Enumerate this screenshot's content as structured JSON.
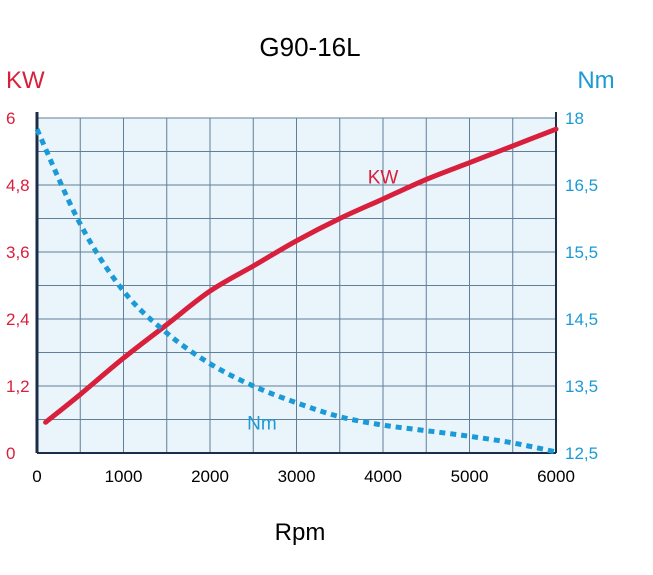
{
  "chart_data": {
    "type": "line",
    "title": "G90-16L",
    "xlabel": "Rpm",
    "y_left_unit": "KW",
    "y_right_unit": "Nm",
    "x_ticks": [
      "0",
      "1000",
      "2000",
      "3000",
      "4000",
      "5000",
      "6000"
    ],
    "x_tick_values": [
      0,
      1000,
      2000,
      3000,
      4000,
      5000,
      6000
    ],
    "y_left_ticks": [
      "0",
      "1,2",
      "2,4",
      "3,6",
      "4,8",
      "6"
    ],
    "y_left_tick_values": [
      0,
      1.2,
      2.4,
      3.6,
      4.8,
      6
    ],
    "y_right_ticks": [
      "12,5",
      "13,5",
      "14,5",
      "15,5",
      "16,5",
      "18"
    ],
    "xlim": [
      0,
      6000
    ],
    "ylim_left": [
      0,
      6
    ],
    "grid": true,
    "series": [
      {
        "name": "KW",
        "axis": "left",
        "color": "#d81f3b",
        "style": "solid",
        "x": [
          100,
          500,
          1000,
          1500,
          2000,
          2500,
          3000,
          3500,
          4000,
          4500,
          5000,
          5500,
          6000
        ],
        "values": [
          0.55,
          1.05,
          1.7,
          2.3,
          2.9,
          3.35,
          3.8,
          4.2,
          4.55,
          4.9,
          5.2,
          5.5,
          5.8
        ]
      },
      {
        "name": "Nm",
        "axis": "right",
        "color": "#1a9ad6",
        "style": "dotted",
        "x": [
          0,
          500,
          1000,
          1500,
          2000,
          2500,
          3000,
          3500,
          4000,
          4500,
          5000,
          5500,
          6000
        ],
        "values_left_scale": [
          5.8,
          4.1,
          2.9,
          2.15,
          1.6,
          1.2,
          0.9,
          0.65,
          0.5,
          0.4,
          0.3,
          0.18,
          0.02
        ]
      }
    ],
    "series_labels": [
      {
        "text": "KW",
        "color": "#d81f3b",
        "x": 4000,
        "y": 4.95
      },
      {
        "text": "Nm",
        "color": "#1a9ad6",
        "x": 2600,
        "y": 0.55
      }
    ],
    "colors": {
      "left_axis": "#d81f3b",
      "right_axis": "#1a9ad6",
      "plot_background": "#eaf4fb",
      "grid": "#5f7f9a"
    }
  }
}
